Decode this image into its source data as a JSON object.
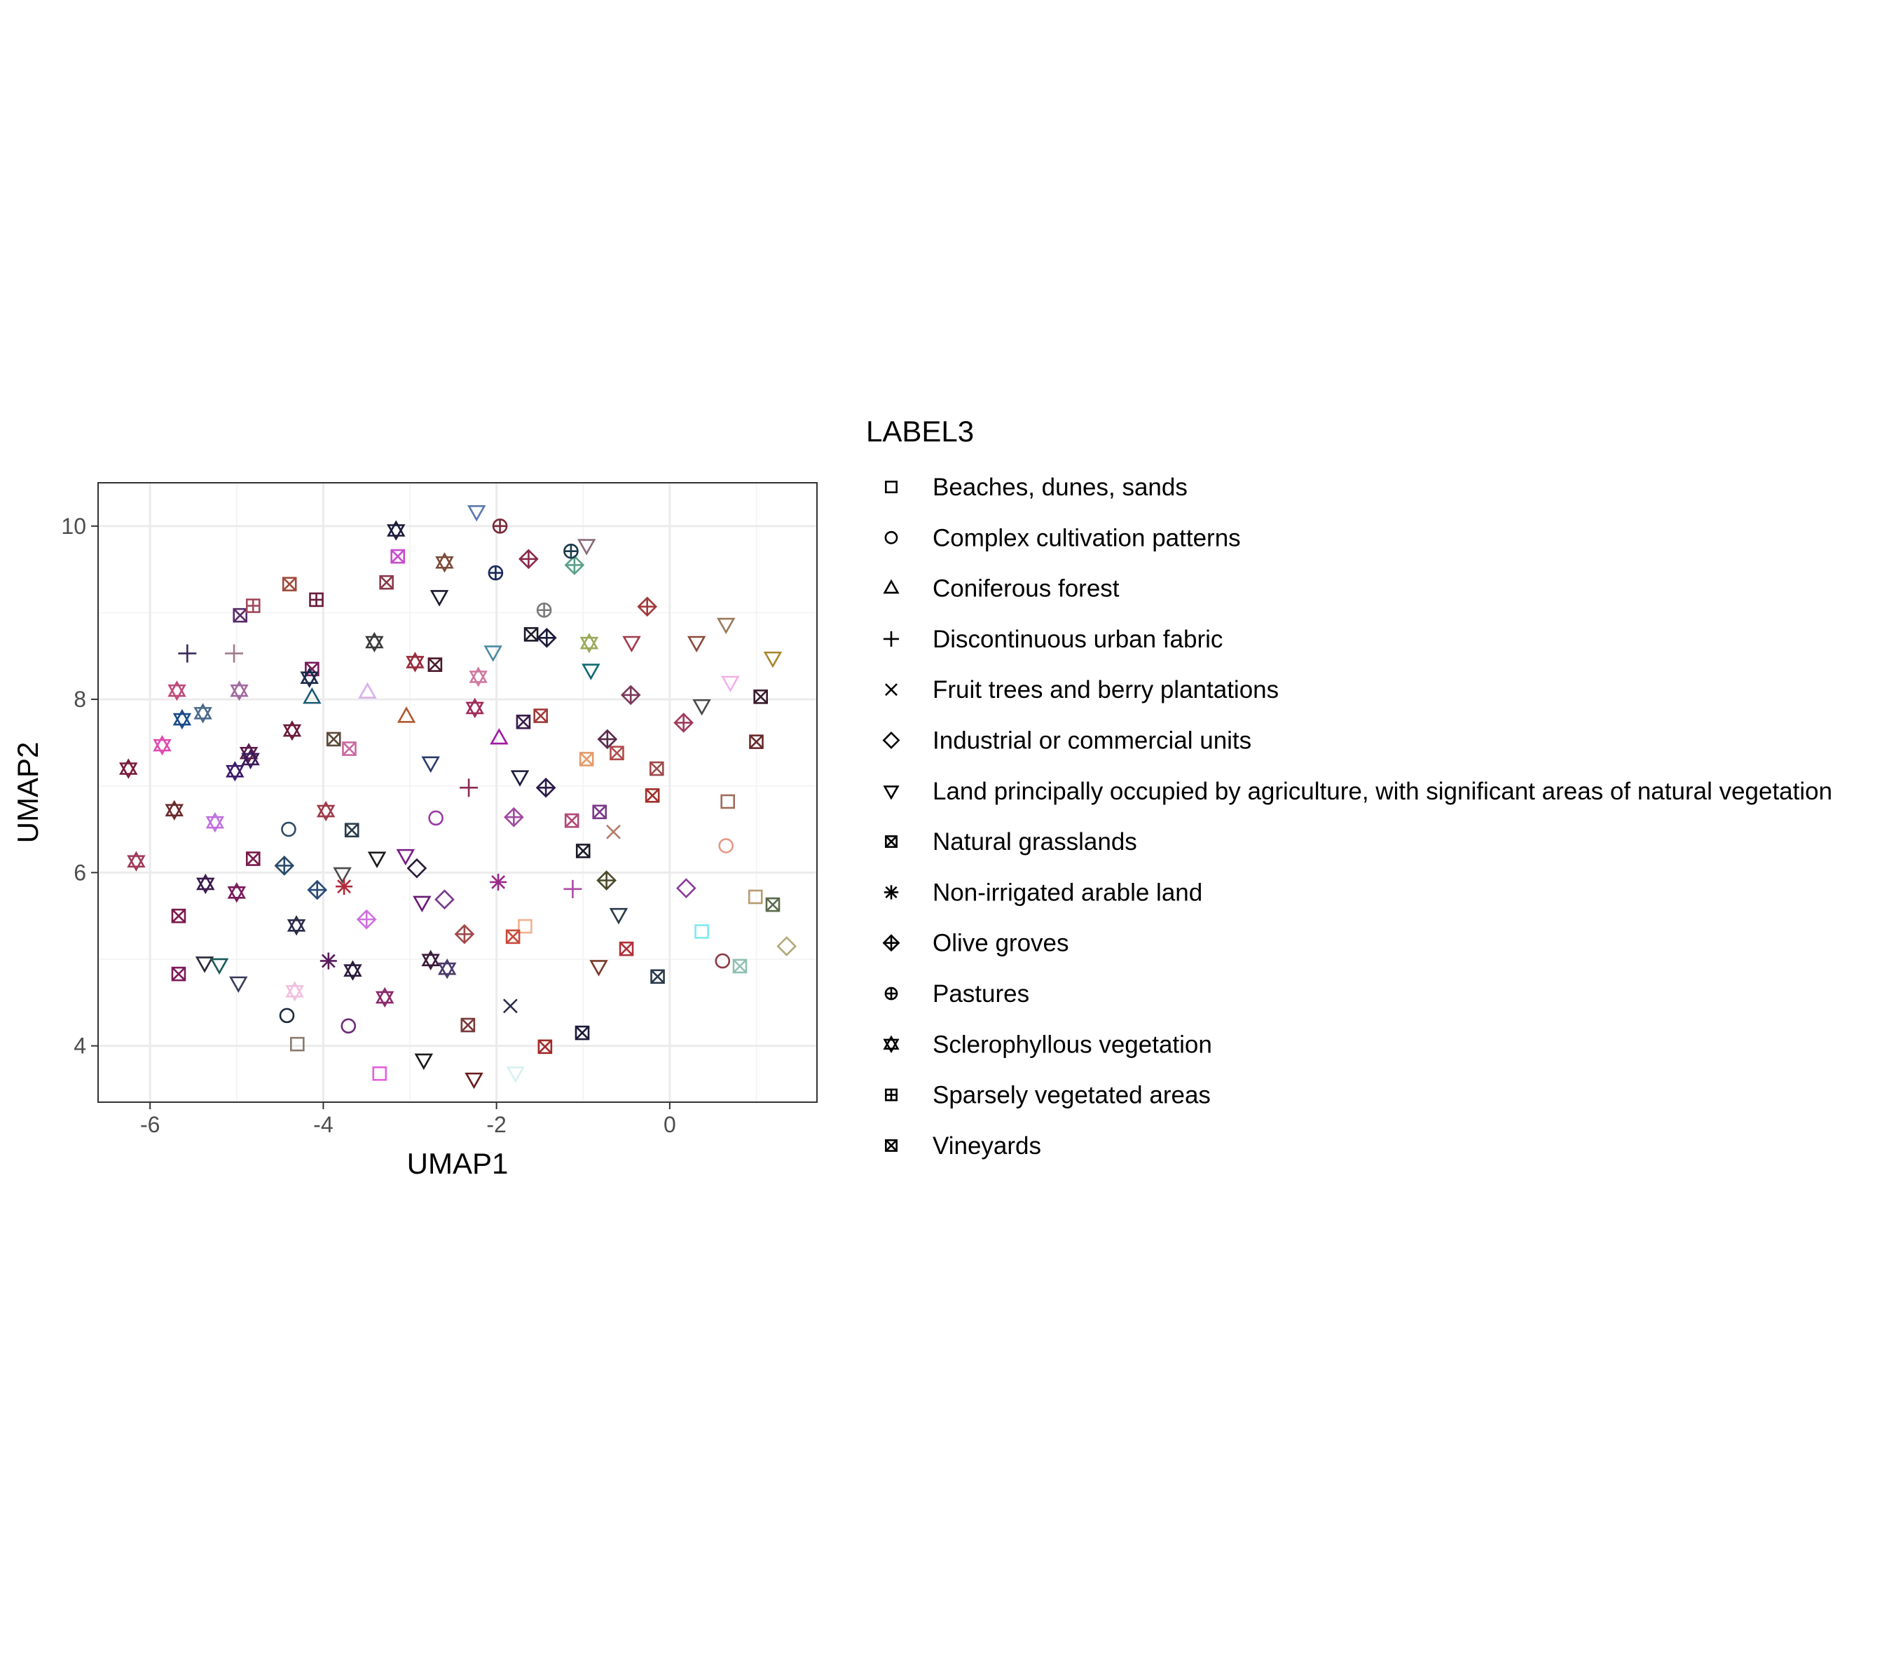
{
  "chart_data": {
    "type": "scatter",
    "title": "",
    "xlabel": "UMAP1",
    "ylabel": "UMAP2",
    "xlim": [
      -6.6,
      1.7
    ],
    "ylim": [
      3.35,
      10.5
    ],
    "x_ticks": [
      -6,
      -4,
      -2,
      0
    ],
    "y_ticks": [
      4,
      6,
      8,
      10
    ],
    "grid": true,
    "legend_title": "LABEL3",
    "legend_position": "right",
    "categories": [
      {
        "name": "Beaches, dunes, sands",
        "shape": "square"
      },
      {
        "name": "Complex cultivation patterns",
        "shape": "circle"
      },
      {
        "name": "Coniferous forest",
        "shape": "triangle-up"
      },
      {
        "name": "Discontinuous urban fabric",
        "shape": "plus"
      },
      {
        "name": "Fruit trees and berry plantations",
        "shape": "cross"
      },
      {
        "name": "Industrial or commercial units",
        "shape": "diamond"
      },
      {
        "name": "Land principally occupied by agriculture, with significant areas of natural vegetation",
        "shape": "triangle-down"
      },
      {
        "name": "Natural grasslands",
        "shape": "square-cross"
      },
      {
        "name": "Non-irrigated arable land",
        "shape": "asterisk"
      },
      {
        "name": "Olive groves",
        "shape": "diamond-plus"
      },
      {
        "name": "Pastures",
        "shape": "circle-plus"
      },
      {
        "name": "Sclerophyllous vegetation",
        "shape": "star-of-david"
      },
      {
        "name": "Sparsely vegetated areas",
        "shape": "square-plus"
      },
      {
        "name": "Vineyards",
        "shape": "square-cross"
      }
    ],
    "points": [
      {
        "x": -4.3,
        "y": 4.02,
        "cat": 0,
        "color": "#8a7a6a"
      },
      {
        "x": -3.35,
        "y": 3.68,
        "cat": 0,
        "color": "#e55ee0"
      },
      {
        "x": -1.67,
        "y": 5.38,
        "cat": 0,
        "color": "#f3b08f"
      },
      {
        "x": 0.37,
        "y": 5.32,
        "cat": 0,
        "color": "#7feaf1"
      },
      {
        "x": 0.67,
        "y": 6.82,
        "cat": 0,
        "color": "#a06b5a"
      },
      {
        "x": 0.99,
        "y": 5.72,
        "cat": 0,
        "color": "#b89a6e"
      },
      {
        "x": -4.4,
        "y": 6.5,
        "cat": 1,
        "color": "#2f4a66"
      },
      {
        "x": -4.42,
        "y": 4.35,
        "cat": 1,
        "color": "#1a2a3c"
      },
      {
        "x": -3.71,
        "y": 4.23,
        "cat": 1,
        "color": "#6d2a7a"
      },
      {
        "x": -2.7,
        "y": 6.63,
        "cat": 1,
        "color": "#9a3aa4"
      },
      {
        "x": 0.61,
        "y": 4.98,
        "cat": 1,
        "color": "#8a3a46"
      },
      {
        "x": 0.65,
        "y": 6.31,
        "cat": 1,
        "color": "#e49a86"
      },
      {
        "x": -4.13,
        "y": 8.02,
        "cat": 2,
        "color": "#1b5a73"
      },
      {
        "x": -3.49,
        "y": 8.08,
        "cat": 2,
        "color": "#d8b0ea"
      },
      {
        "x": -3.04,
        "y": 7.8,
        "cat": 2,
        "color": "#b25a2e"
      },
      {
        "x": -1.97,
        "y": 7.55,
        "cat": 2,
        "color": "#a01aa4"
      },
      {
        "x": -5.57,
        "y": 8.53,
        "cat": 3,
        "color": "#3a2a5a"
      },
      {
        "x": -5.03,
        "y": 8.53,
        "cat": 3,
        "color": "#a07a8a"
      },
      {
        "x": -2.32,
        "y": 6.98,
        "cat": 3,
        "color": "#8a2a54"
      },
      {
        "x": -1.12,
        "y": 5.81,
        "cat": 3,
        "color": "#b04aa8"
      },
      {
        "x": -1.84,
        "y": 4.46,
        "cat": 4,
        "color": "#2a2a4e"
      },
      {
        "x": -0.65,
        "y": 6.47,
        "cat": 4,
        "color": "#b07a6a"
      },
      {
        "x": -2.92,
        "y": 6.05,
        "cat": 5,
        "color": "#2a1a3a"
      },
      {
        "x": -2.6,
        "y": 5.69,
        "cat": 5,
        "color": "#7a3a8a"
      },
      {
        "x": 0.19,
        "y": 5.82,
        "cat": 5,
        "color": "#8a3a9a"
      },
      {
        "x": 1.35,
        "y": 5.15,
        "cat": 5,
        "color": "#b0aa7a"
      },
      {
        "x": -2.23,
        "y": 10.17,
        "cat": 6,
        "color": "#5a7ab0"
      },
      {
        "x": -0.96,
        "y": 9.78,
        "cat": 6,
        "color": "#8a6a7a"
      },
      {
        "x": -2.66,
        "y": 9.19,
        "cat": 6,
        "color": "#1a1a2e"
      },
      {
        "x": -2.04,
        "y": 8.55,
        "cat": 6,
        "color": "#4a8aa4"
      },
      {
        "x": -0.91,
        "y": 8.34,
        "cat": 6,
        "color": "#106a74"
      },
      {
        "x": -0.44,
        "y": 8.66,
        "cat": 6,
        "color": "#a23a4a"
      },
      {
        "x": 0.31,
        "y": 8.66,
        "cat": 6,
        "color": "#8a4a3a"
      },
      {
        "x": 0.65,
        "y": 8.87,
        "cat": 6,
        "color": "#9a7a5a"
      },
      {
        "x": 0.7,
        "y": 8.2,
        "cat": 6,
        "color": "#f2b0e8"
      },
      {
        "x": 1.19,
        "y": 8.48,
        "cat": 6,
        "color": "#a8862a"
      },
      {
        "x": 0.37,
        "y": 7.93,
        "cat": 6,
        "color": "#4a4a4a"
      },
      {
        "x": -2.76,
        "y": 7.27,
        "cat": 6,
        "color": "#2a3a6a"
      },
      {
        "x": -1.73,
        "y": 7.11,
        "cat": 6,
        "color": "#1a1a3a"
      },
      {
        "x": -3.38,
        "y": 6.17,
        "cat": 6,
        "color": "#1a1a1a"
      },
      {
        "x": -3.78,
        "y": 5.99,
        "cat": 6,
        "color": "#4a4a4a"
      },
      {
        "x": -3.05,
        "y": 6.2,
        "cat": 6,
        "color": "#7a1a8a"
      },
      {
        "x": -2.86,
        "y": 5.66,
        "cat": 6,
        "color": "#6a1a74"
      },
      {
        "x": -0.59,
        "y": 5.52,
        "cat": 6,
        "color": "#2a3a4a"
      },
      {
        "x": -0.82,
        "y": 4.92,
        "cat": 6,
        "color": "#7a3a2a"
      },
      {
        "x": -5.37,
        "y": 4.96,
        "cat": 6,
        "color": "#2a2a3a"
      },
      {
        "x": -5.2,
        "y": 4.94,
        "cat": 6,
        "color": "#1a5a5a"
      },
      {
        "x": -4.98,
        "y": 4.73,
        "cat": 6,
        "color": "#3a3a5a"
      },
      {
        "x": -2.84,
        "y": 3.84,
        "cat": 6,
        "color": "#1a1a1a"
      },
      {
        "x": -2.26,
        "y": 3.62,
        "cat": 6,
        "color": "#6a1a1a"
      },
      {
        "x": -1.78,
        "y": 3.69,
        "cat": 6,
        "color": "#d8f0f0"
      },
      {
        "x": -4.96,
        "y": 8.97,
        "cat": 7,
        "color": "#5a2a6a"
      },
      {
        "x": -4.39,
        "y": 9.33,
        "cat": 7,
        "color": "#a04a3a"
      },
      {
        "x": -4.13,
        "y": 8.35,
        "cat": 7,
        "color": "#7a1a5a"
      },
      {
        "x": -3.27,
        "y": 9.35,
        "cat": 7,
        "color": "#8a3a4a"
      },
      {
        "x": -3.14,
        "y": 9.65,
        "cat": 7,
        "color": "#c84ad0"
      },
      {
        "x": -2.71,
        "y": 8.4,
        "cat": 7,
        "color": "#4a1a2a"
      },
      {
        "x": -1.6,
        "y": 8.75,
        "cat": 7,
        "color": "#1a1a2a"
      },
      {
        "x": -1.69,
        "y": 7.74,
        "cat": 7,
        "color": "#3a1a4a"
      },
      {
        "x": -1.49,
        "y": 7.81,
        "cat": 7,
        "color": "#a03a3a"
      },
      {
        "x": -3.88,
        "y": 7.54,
        "cat": 7,
        "color": "#5a4a3a"
      },
      {
        "x": -3.7,
        "y": 7.43,
        "cat": 7,
        "color": "#c86aa0"
      },
      {
        "x": -3.67,
        "y": 6.49,
        "cat": 7,
        "color": "#2a3a4a"
      },
      {
        "x": -4.81,
        "y": 6.16,
        "cat": 7,
        "color": "#7a1a4a"
      },
      {
        "x": -5.67,
        "y": 5.5,
        "cat": 7,
        "color": "#7a1a4a"
      },
      {
        "x": -5.67,
        "y": 4.83,
        "cat": 7,
        "color": "#7a1a5a"
      },
      {
        "x": -1.13,
        "y": 6.6,
        "cat": 7,
        "color": "#b04a7a"
      },
      {
        "x": -1.0,
        "y": 6.25,
        "cat": 7,
        "color": "#1a1a2a"
      },
      {
        "x": -0.81,
        "y": 6.7,
        "cat": 7,
        "color": "#7a3a8a"
      },
      {
        "x": -0.96,
        "y": 7.31,
        "cat": 7,
        "color": "#e49a6a"
      },
      {
        "x": -0.61,
        "y": 7.38,
        "cat": 7,
        "color": "#b04a4a"
      },
      {
        "x": -0.15,
        "y": 7.2,
        "cat": 7,
        "color": "#a04a4a"
      },
      {
        "x": -0.2,
        "y": 6.89,
        "cat": 7,
        "color": "#a0302a"
      },
      {
        "x": -1.81,
        "y": 5.26,
        "cat": 7,
        "color": "#c84a3a"
      },
      {
        "x": -2.33,
        "y": 4.24,
        "cat": 7,
        "color": "#7a3a3a"
      },
      {
        "x": -1.44,
        "y": 3.99,
        "cat": 7,
        "color": "#a02a2a"
      },
      {
        "x": -1.01,
        "y": 4.15,
        "cat": 7,
        "color": "#1a1a3a"
      },
      {
        "x": -0.5,
        "y": 5.12,
        "cat": 7,
        "color": "#b0303a"
      },
      {
        "x": -0.14,
        "y": 4.8,
        "cat": 7,
        "color": "#2a3a4a"
      },
      {
        "x": 1.0,
        "y": 7.51,
        "cat": 7,
        "color": "#6a2a2a"
      },
      {
        "x": 1.05,
        "y": 8.03,
        "cat": 7,
        "color": "#3a1a2a"
      },
      {
        "x": 1.19,
        "y": 5.63,
        "cat": 7,
        "color": "#5a6a4a"
      },
      {
        "x": 0.81,
        "y": 4.92,
        "cat": 7,
        "color": "#90c0b0"
      },
      {
        "x": -3.76,
        "y": 5.84,
        "cat": 8,
        "color": "#b02a3a"
      },
      {
        "x": -3.94,
        "y": 4.98,
        "cat": 8,
        "color": "#5a1a5a"
      },
      {
        "x": -1.98,
        "y": 5.89,
        "cat": 8,
        "color": "#9a2a8a"
      },
      {
        "x": -1.63,
        "y": 9.62,
        "cat": 9,
        "color": "#8a2a4a"
      },
      {
        "x": -1.1,
        "y": 9.55,
        "cat": 9,
        "color": "#5aa08a"
      },
      {
        "x": -1.42,
        "y": 8.71,
        "cat": 9,
        "color": "#1a1a3a"
      },
      {
        "x": -0.26,
        "y": 9.07,
        "cat": 9,
        "color": "#a03a3a"
      },
      {
        "x": -0.45,
        "y": 8.05,
        "cat": 9,
        "color": "#7a3a5a"
      },
      {
        "x": 0.16,
        "y": 7.73,
        "cat": 9,
        "color": "#a03a5a"
      },
      {
        "x": -0.72,
        "y": 7.54,
        "cat": 9,
        "color": "#5a2a4a"
      },
      {
        "x": -1.43,
        "y": 6.98,
        "cat": 9,
        "color": "#2a1a4a"
      },
      {
        "x": -1.8,
        "y": 6.64,
        "cat": 9,
        "color": "#a04aa0"
      },
      {
        "x": -0.73,
        "y": 5.91,
        "cat": 9,
        "color": "#4a4a2a"
      },
      {
        "x": -4.45,
        "y": 6.08,
        "cat": 9,
        "color": "#2a4a6a"
      },
      {
        "x": -4.07,
        "y": 5.8,
        "cat": 9,
        "color": "#2a4a7a"
      },
      {
        "x": -3.5,
        "y": 5.46,
        "cat": 9,
        "color": "#d070e0"
      },
      {
        "x": -2.37,
        "y": 5.29,
        "cat": 9,
        "color": "#a04a4a"
      },
      {
        "x": -1.96,
        "y": 10.0,
        "cat": 10,
        "color": "#7a2a3a"
      },
      {
        "x": -1.14,
        "y": 9.71,
        "cat": 10,
        "color": "#1a3a4a"
      },
      {
        "x": -2.01,
        "y": 9.46,
        "cat": 10,
        "color": "#1a2a5a"
      },
      {
        "x": -1.45,
        "y": 9.03,
        "cat": 10,
        "color": "#7a7a7a"
      },
      {
        "x": -3.16,
        "y": 9.95,
        "cat": 11,
        "color": "#1a1a3a"
      },
      {
        "x": -2.6,
        "y": 9.58,
        "cat": 11,
        "color": "#7a4a3a"
      },
      {
        "x": -3.41,
        "y": 8.66,
        "cat": 11,
        "color": "#3a3a3a"
      },
      {
        "x": -2.94,
        "y": 8.43,
        "cat": 11,
        "color": "#9a2a3a"
      },
      {
        "x": -2.21,
        "y": 8.26,
        "cat": 11,
        "color": "#d07aa0"
      },
      {
        "x": -2.25,
        "y": 7.9,
        "cat": 11,
        "color": "#a02a5a"
      },
      {
        "x": -0.93,
        "y": 8.65,
        "cat": 11,
        "color": "#9aaa5a"
      },
      {
        "x": -4.16,
        "y": 8.25,
        "cat": 11,
        "color": "#1a2a4a"
      },
      {
        "x": -4.36,
        "y": 7.64,
        "cat": 11,
        "color": "#6a1a3a"
      },
      {
        "x": -5.69,
        "y": 8.1,
        "cat": 11,
        "color": "#c04a7a"
      },
      {
        "x": -4.97,
        "y": 8.1,
        "cat": 11,
        "color": "#a06aa0"
      },
      {
        "x": -5.39,
        "y": 7.84,
        "cat": 11,
        "color": "#4a6a8a"
      },
      {
        "x": -5.63,
        "y": 7.77,
        "cat": 11,
        "color": "#1a4a8a"
      },
      {
        "x": -5.86,
        "y": 7.47,
        "cat": 11,
        "color": "#e04ab0"
      },
      {
        "x": -6.25,
        "y": 7.2,
        "cat": 11,
        "color": "#7a1a3a"
      },
      {
        "x": -4.86,
        "y": 7.38,
        "cat": 11,
        "color": "#5a1a4a"
      },
      {
        "x": -4.84,
        "y": 7.31,
        "cat": 11,
        "color": "#3a1a5a"
      },
      {
        "x": -5.02,
        "y": 7.17,
        "cat": 11,
        "color": "#3a1a6a"
      },
      {
        "x": -5.72,
        "y": 6.72,
        "cat": 11,
        "color": "#6a2a2a"
      },
      {
        "x": -5.25,
        "y": 6.58,
        "cat": 11,
        "color": "#c070e0"
      },
      {
        "x": -3.97,
        "y": 6.71,
        "cat": 11,
        "color": "#a03a4a"
      },
      {
        "x": -6.16,
        "y": 6.13,
        "cat": 11,
        "color": "#a03a5a"
      },
      {
        "x": -5.36,
        "y": 5.87,
        "cat": 11,
        "color": "#3a1a4a"
      },
      {
        "x": -5.0,
        "y": 5.77,
        "cat": 11,
        "color": "#7a1a5a"
      },
      {
        "x": -4.31,
        "y": 5.39,
        "cat": 11,
        "color": "#2a2a4a"
      },
      {
        "x": -3.66,
        "y": 4.87,
        "cat": 11,
        "color": "#2a1a3a"
      },
      {
        "x": -2.76,
        "y": 4.99,
        "cat": 11,
        "color": "#3a1a3a"
      },
      {
        "x": -2.57,
        "y": 4.89,
        "cat": 11,
        "color": "#4a3a6a"
      },
      {
        "x": -3.29,
        "y": 4.56,
        "cat": 11,
        "color": "#8a2a6a"
      },
      {
        "x": -4.33,
        "y": 4.63,
        "cat": 11,
        "color": "#f0c0e0"
      },
      {
        "x": -4.81,
        "y": 9.08,
        "cat": 12,
        "color": "#a04a5a"
      },
      {
        "x": -4.08,
        "y": 9.15,
        "cat": 12,
        "color": "#6a1a3a"
      }
    ]
  }
}
